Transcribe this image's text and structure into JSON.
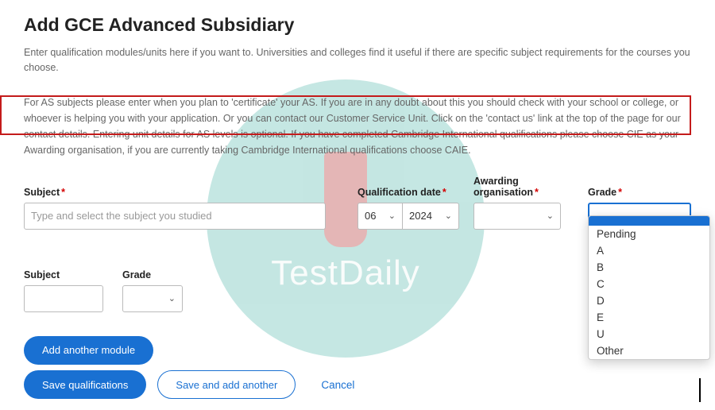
{
  "title": "Add GCE Advanced Subsidiary",
  "intro": "Enter qualification modules/units here if you want to. Universities and colleges find it useful if there are specific subject requirements for the courses you choose.",
  "para2": "For AS subjects please enter when you plan to 'certificate' your AS. If you are in any doubt about this you should check with your school or college, or whoever is helping you with your application. Or you can contact our Customer Service Unit. Click on the 'contact us' link at the top of the page for our contact details. Entering unit details for AS levels is optional. If you have completed Cambridge International qualifications please choose CIE as your Awarding organisation, if you are currently taking Cambridge International qualifications choose CAIE.",
  "labels": {
    "subject": "Subject",
    "qual_date": "Qualification date",
    "award_org": "Awarding organisation",
    "grade": "Grade",
    "module_subject": "Subject",
    "module_grade": "Grade"
  },
  "placeholders": {
    "subject": "Type and select the subject you studied"
  },
  "values": {
    "month": "06",
    "year": "2024",
    "award": "",
    "grade": ""
  },
  "grade_options": [
    "Pending",
    "A",
    "B",
    "C",
    "D",
    "E",
    "U",
    "Other"
  ],
  "buttons": {
    "add_module": "Add another module",
    "save": "Save qualifications",
    "save_add": "Save and add another",
    "cancel": "Cancel"
  },
  "watermark_text": "TestDaily",
  "colors": {
    "primary": "#1970d2",
    "required": "#d40000",
    "highlight_border": "#c41b1b",
    "watermark_bg": "#7ec9c1",
    "watermark_accent": "#d64545"
  }
}
